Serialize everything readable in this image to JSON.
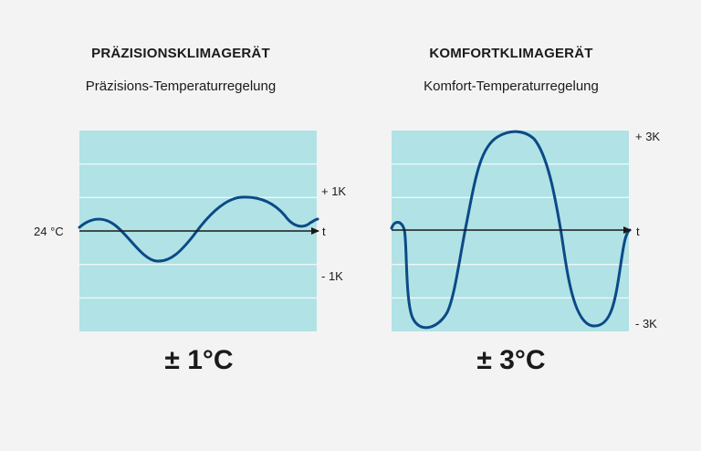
{
  "colors": {
    "background": "#f3f3f3",
    "plot_bg": "#b1e2e5",
    "grid": "#ffffff",
    "curve": "#0b4a86",
    "axis": "#1a1a1a"
  },
  "left": {
    "title": "PRÄZISIONSKLIMAGERÄT",
    "subtitle": "Präzisions-Temperaturregelung",
    "tolerance": "± 1°C",
    "ylabel_left": "24 °C",
    "tick_top": "+ 1K",
    "tick_bottom": "- 1K",
    "axis_label": "t"
  },
  "right": {
    "title": "KOMFORTKLIMAGERÄT",
    "subtitle": "Komfort-Temperaturregelung",
    "tolerance": "± 3°C",
    "tick_top": "+ 3K",
    "tick_bottom": "- 3K",
    "axis_label": "t"
  },
  "chart_data": [
    {
      "type": "line",
      "title": "Präzisions-Temperaturregelung",
      "xlabel": "t",
      "ylabel": "24 °C",
      "ylim": [
        -3,
        3
      ],
      "grid": true,
      "series": [
        {
          "x": [
            0,
            0.06,
            0.12,
            0.2,
            0.33,
            0.5,
            0.68,
            0.78,
            0.9,
            0.97,
            1.0
          ],
          "y": [
            0.1,
            0.25,
            0.1,
            -0.55,
            -0.95,
            -0.1,
            0.95,
            0.8,
            0.05,
            0.1,
            0.3
          ]
        }
      ]
    },
    {
      "type": "line",
      "title": "Komfort-Temperaturregelung",
      "xlabel": "t",
      "ylim": [
        -3,
        3
      ],
      "grid": true,
      "series": [
        {
          "x": [
            0,
            0.03,
            0.07,
            0.14,
            0.3,
            0.52,
            0.72,
            0.87,
            0.98,
            1.0
          ],
          "y": [
            0.1,
            0.2,
            -1.5,
            -2.8,
            0.2,
            2.9,
            0.2,
            -2.9,
            -0.2,
            0.1
          ]
        }
      ]
    }
  ]
}
